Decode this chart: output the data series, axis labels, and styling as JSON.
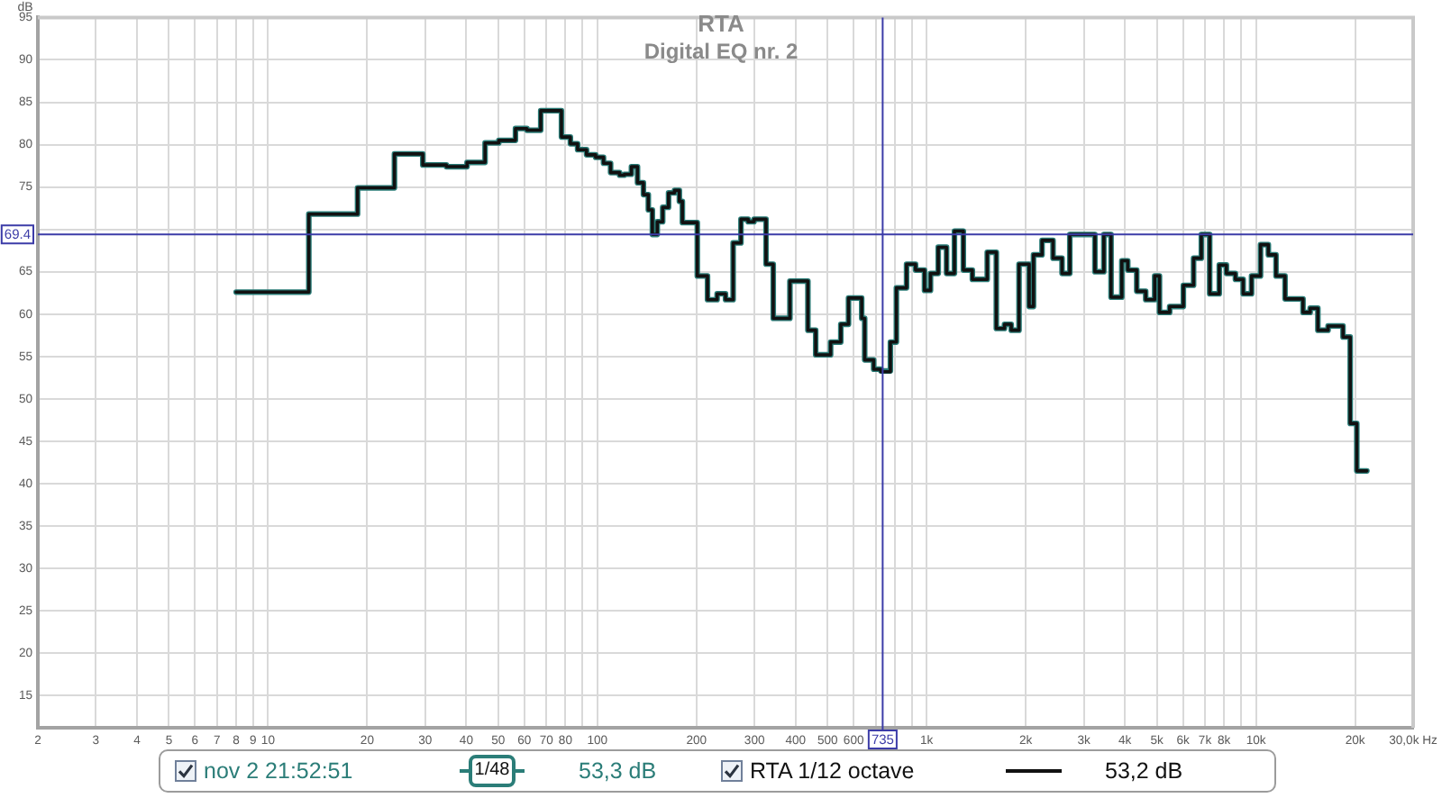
{
  "chart_data": {
    "type": "step",
    "title": "RTA",
    "subtitle": "Digital EQ nr. 2",
    "ylabel": "dB",
    "x": [
      8,
      13.3,
      18.7,
      24.2,
      29.5,
      34.8,
      40.2,
      45.6,
      50.2,
      56.4,
      61.1,
      67.3,
      77.8,
      82.8,
      87.1,
      92.7,
      98.8,
      104.4,
      109.7,
      116.8,
      120.7,
      126.9,
      132.4,
      138,
      142.8,
      146.9,
      152,
      157.9,
      164.5,
      171.5,
      177.4,
      181.2,
      201.1,
      216,
      231,
      245,
      258.4,
      272.9,
      287,
      299,
      325.2,
      342,
      384.3,
      435.8,
      460.2,
      510.8,
      548.5,
      578.9,
      634.8,
      648.2,
      690.2,
      725.8,
      775.9,
      809,
      868.6,
      925,
      984.7,
      1027,
      1084,
      1149,
      1214,
      1292,
      1376,
      1527,
      1627,
      1723,
      1806,
      1907,
      2047,
      2110,
      2240,
      2419,
      2576,
      2720,
      3242,
      3451,
      3629,
      3913,
      4079,
      4343,
      4624,
      4923,
      5091,
      5467,
      6017,
      6462,
      6822,
      7233,
      7733,
      8131,
      8658,
      9141,
      9692,
      10320,
      10900,
      11500,
      12250,
      13890,
      14600,
      15410,
      16550,
      18370,
      19320,
      20230,
      21710
    ],
    "series": [
      {
        "name": "nov 2 21:52:51",
        "color": "#2b7d78",
        "values": [
          62.6,
          71.8,
          74.9,
          78.9,
          77.6,
          77.4,
          77.9,
          80.2,
          80.5,
          81.9,
          81.7,
          84.0,
          80.9,
          80.1,
          79.4,
          78.8,
          78.5,
          77.8,
          76.7,
          76.4,
          76.5,
          77.4,
          75.5,
          74.1,
          72.3,
          69.4,
          70.9,
          72.6,
          74.3,
          74.6,
          73.3,
          70.8,
          64.5,
          61.7,
          62.4,
          61.7,
          68.4,
          71.2,
          70.9,
          71.2,
          65.9,
          59.5,
          63.9,
          58.1,
          55.2,
          56.7,
          58.8,
          61.9,
          59.5,
          54.6,
          53.5,
          53.3,
          56.7,
          63.1,
          65.9,
          65.2,
          62.8,
          64.8,
          67.9,
          64.8,
          69.8,
          65.2,
          64.1,
          67.3,
          58.3,
          58.8,
          58.1,
          65.9,
          60.9,
          67.0,
          68.7,
          66.6,
          64.8,
          69.4,
          65.0,
          69.4,
          62.0,
          66.3,
          65.2,
          62.7,
          61.7,
          64.5,
          60.2,
          60.9,
          63.4,
          66.6,
          69.4,
          62.4,
          65.8,
          64.8,
          64.1,
          62.4,
          64.5,
          68.2,
          67.0,
          64.5,
          61.8,
          60.2,
          60.7,
          58.1,
          58.6,
          57.3,
          47.1,
          41.5,
          41.5
        ]
      },
      {
        "name": "RTA 1/12 octave",
        "color": "#111111",
        "values": [
          62.6,
          71.8,
          74.9,
          78.9,
          77.6,
          77.4,
          77.9,
          80.2,
          80.5,
          81.9,
          81.7,
          84.0,
          80.9,
          80.1,
          79.4,
          78.8,
          78.5,
          77.8,
          76.7,
          76.4,
          76.5,
          77.4,
          75.5,
          74.1,
          72.3,
          69.4,
          70.9,
          72.6,
          74.3,
          74.6,
          73.3,
          70.8,
          64.5,
          61.7,
          62.4,
          61.7,
          68.4,
          71.2,
          70.9,
          71.2,
          65.9,
          59.5,
          63.9,
          58.1,
          55.2,
          56.7,
          58.8,
          61.9,
          59.5,
          54.6,
          53.5,
          53.2,
          56.7,
          63.1,
          65.9,
          65.2,
          62.8,
          64.8,
          67.9,
          64.8,
          69.8,
          65.2,
          64.1,
          67.3,
          58.3,
          58.8,
          58.1,
          65.9,
          60.9,
          67.0,
          68.7,
          66.6,
          64.8,
          69.4,
          65.0,
          69.4,
          62.0,
          66.3,
          65.2,
          62.7,
          61.7,
          64.5,
          60.2,
          60.9,
          63.4,
          66.6,
          69.4,
          62.4,
          65.8,
          64.8,
          64.1,
          62.4,
          64.5,
          68.2,
          67.0,
          64.5,
          61.8,
          60.2,
          60.7,
          58.1,
          58.6,
          57.3,
          47.1,
          41.5,
          41.5
        ]
      }
    ],
    "xlim": [
      2,
      30000
    ],
    "ylim": [
      11.2,
      95
    ],
    "xticks": [
      2,
      3,
      4,
      5,
      6,
      7,
      8,
      9,
      10,
      20,
      30,
      40,
      50,
      60,
      70,
      80,
      {
        "value": 90,
        "label": null
      },
      100,
      200,
      300,
      400,
      500,
      600,
      {
        "value": 700,
        "label": null
      },
      {
        "value": 800,
        "label": null
      },
      {
        "value": 900,
        "label": null
      },
      {
        "value": 1000,
        "label": "1k"
      },
      {
        "value": 2000,
        "label": "2k"
      },
      {
        "value": 3000,
        "label": "3k"
      },
      {
        "value": 4000,
        "label": "4k"
      },
      {
        "value": 5000,
        "label": "5k"
      },
      {
        "value": 6000,
        "label": "6k"
      },
      {
        "value": 7000,
        "label": "7k"
      },
      {
        "value": 8000,
        "label": "8k"
      },
      {
        "value": 9000,
        "label": null
      },
      {
        "value": 10000,
        "label": "10k"
      },
      {
        "value": 20000,
        "label": "20k"
      },
      {
        "value": 30000,
        "label": "30,0k Hz"
      }
    ],
    "yticks": [
      15,
      20,
      25,
      30,
      35,
      40,
      45,
      50,
      55,
      60,
      65,
      {
        "value": 70,
        "label": null
      },
      75,
      80,
      85,
      90,
      95
    ],
    "log": "x",
    "grid": true,
    "legend": "bottom",
    "ref_lines": [
      {
        "axis": "y",
        "value": 69.4,
        "label": "69.4",
        "color": "#3c3ca8"
      },
      {
        "axis": "x",
        "value": 735,
        "label": "735",
        "color": "#3c3ca8"
      }
    ],
    "annotations": [
      "1/48",
      "53,3 dB",
      "53,2 dB"
    ]
  }
}
